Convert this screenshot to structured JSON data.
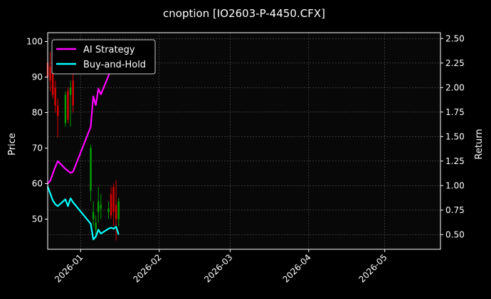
{
  "chart_data": {
    "type": "line",
    "title": "cnoption [IO2603-P-4450.CFX]",
    "xlabel": "",
    "ylabel": "Price",
    "y2label": "Return",
    "xlim": [
      "2025-12-19",
      "2026-05-23"
    ],
    "ylim": [
      41.5,
      102.5
    ],
    "y2lim": [
      0.35,
      2.56
    ],
    "xticks": [
      "2026-01",
      "2026-02",
      "2026-03",
      "2026-04",
      "2026-05"
    ],
    "yticks": [
      50,
      60,
      70,
      80,
      90,
      100
    ],
    "y2ticks": [
      "0.50",
      "0.75",
      "1.00",
      "1.25",
      "1.50",
      "1.75",
      "2.00",
      "2.25",
      "2.50"
    ],
    "grid": true,
    "legend_position": "top-left",
    "candles": [
      {
        "date": "2025-12-19",
        "open": 94,
        "high": 96,
        "low": 88,
        "close": 90
      },
      {
        "date": "2025-12-20",
        "open": 93,
        "high": 97,
        "low": 86,
        "close": 89
      },
      {
        "date": "2025-12-21",
        "open": 94,
        "high": 95,
        "low": 84,
        "close": 85
      },
      {
        "date": "2025-12-22",
        "open": 87,
        "high": 89,
        "low": 80,
        "close": 82
      },
      {
        "date": "2025-12-23",
        "open": 82,
        "high": 84,
        "low": 73,
        "close": 79
      },
      {
        "date": "2025-12-26",
        "open": 77,
        "high": 86,
        "low": 76,
        "close": 85
      },
      {
        "date": "2025-12-27",
        "open": 86,
        "high": 87,
        "low": 77,
        "close": 78
      },
      {
        "date": "2025-12-28",
        "open": 85,
        "high": 89,
        "low": 76,
        "close": 87
      },
      {
        "date": "2025-12-29",
        "open": 89,
        "high": 91,
        "low": 80,
        "close": 82
      },
      {
        "date": "2026-01-05",
        "open": 58,
        "high": 71,
        "low": 55,
        "close": 70
      },
      {
        "date": "2026-01-06",
        "open": 50,
        "high": 55,
        "low": 48,
        "close": 52
      },
      {
        "date": "2026-01-07",
        "open": 47,
        "high": 51,
        "low": 45,
        "close": 49
      },
      {
        "date": "2026-01-08",
        "open": 52,
        "high": 59,
        "low": 49,
        "close": 55
      },
      {
        "date": "2026-01-09",
        "open": 53,
        "high": 57,
        "low": 50,
        "close": 54
      },
      {
        "date": "2026-01-12",
        "open": 52,
        "high": 55,
        "low": 50,
        "close": 53
      },
      {
        "date": "2026-01-13",
        "open": 57,
        "high": 59,
        "low": 50,
        "close": 51
      },
      {
        "date": "2026-01-14",
        "open": 59,
        "high": 60,
        "low": 48,
        "close": 52
      },
      {
        "date": "2026-01-15",
        "open": 54,
        "high": 61,
        "low": 44,
        "close": 50
      },
      {
        "date": "2026-01-16",
        "open": 50,
        "high": 56,
        "low": 48,
        "close": 55
      }
    ],
    "series": [
      {
        "name": "AI Strategy",
        "axis": "right",
        "color": "#ff00ff",
        "x": [
          "2025-12-19",
          "2025-12-20",
          "2025-12-21",
          "2025-12-22",
          "2025-12-23",
          "2025-12-26",
          "2025-12-27",
          "2025-12-28",
          "2025-12-29",
          "2026-01-05",
          "2026-01-06",
          "2026-01-07",
          "2026-01-08",
          "2026-01-09",
          "2026-01-12",
          "2026-01-13",
          "2026-01-14"
        ],
        "values": [
          1.02,
          1.05,
          1.12,
          1.19,
          1.25,
          1.17,
          1.15,
          1.13,
          1.14,
          1.6,
          1.91,
          1.82,
          1.99,
          1.93,
          2.12,
          2.23,
          2.3
        ]
      },
      {
        "name": "Buy-and-Hold",
        "axis": "right",
        "color": "#00ffff",
        "x": [
          "2025-12-19",
          "2025-12-20",
          "2025-12-21",
          "2025-12-22",
          "2025-12-23",
          "2025-12-26",
          "2025-12-27",
          "2025-12-28",
          "2025-12-29",
          "2026-01-05",
          "2026-01-06",
          "2026-01-07",
          "2026-01-08",
          "2026-01-09",
          "2026-01-12",
          "2026-01-13",
          "2026-01-14",
          "2026-01-15",
          "2026-01-16"
        ],
        "values": [
          0.99,
          0.92,
          0.85,
          0.81,
          0.79,
          0.86,
          0.79,
          0.87,
          0.83,
          0.61,
          0.45,
          0.48,
          0.55,
          0.51,
          0.56,
          0.57,
          0.56,
          0.58,
          0.5
        ]
      }
    ]
  }
}
